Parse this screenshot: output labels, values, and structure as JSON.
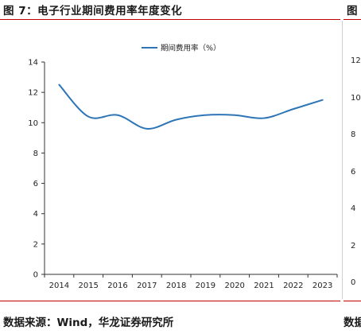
{
  "header": {
    "title": "图 7：电子行业期间费用率年度变化",
    "next_title": "图"
  },
  "chart_data": {
    "type": "line",
    "x": [
      "2014",
      "2015",
      "2016",
      "2017",
      "2018",
      "2019",
      "2020",
      "2021",
      "2022",
      "2023"
    ],
    "series": [
      {
        "name": "期间费用率（%）",
        "values": [
          12.5,
          10.4,
          10.5,
          9.6,
          10.2,
          10.5,
          10.5,
          10.3,
          10.9,
          11.5
        ],
        "color": "#2e75b6"
      }
    ],
    "ylim": [
      0,
      14
    ],
    "yticks": [
      "0",
      "2",
      "4",
      "6",
      "8",
      "10",
      "12",
      "14"
    ],
    "legend": "top-center",
    "grid": false
  },
  "right_chart_partial": {
    "yticks": [
      "12",
      "10",
      "8",
      "6",
      "4",
      "2",
      "0"
    ]
  },
  "footer": {
    "source": "数据来源：Wind，华龙证券研究所",
    "next_source": "数据"
  }
}
